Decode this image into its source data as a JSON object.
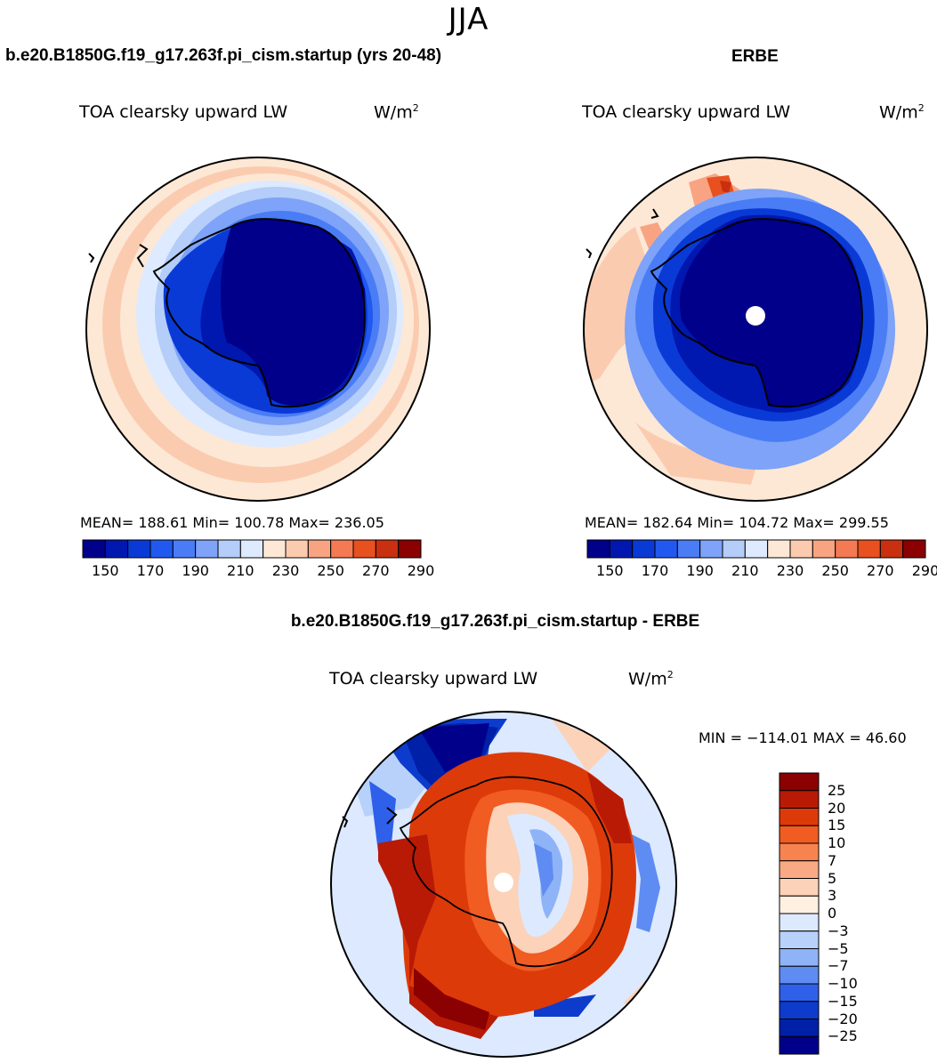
{
  "season": "JJA",
  "panels": [
    {
      "title": "b.e20.B1850G.f19_g17.263f.pi_cism.startup (yrs 20-48)",
      "variable": "TOA clearsky upward LW",
      "units_base": "W/m",
      "units_exp": "2",
      "stats_text": "MEAN= 188.61   Min= 100.78   Max= 236.05",
      "stats": {
        "mean": 188.61,
        "min": 100.78,
        "max": 236.05
      },
      "has_pole_hole": false
    },
    {
      "title": "ERBE",
      "variable": "TOA clearsky upward LW",
      "units_base": "W/m",
      "units_exp": "2",
      "stats_text": "MEAN= 182.64   Min= 104.72   Max= 299.55",
      "stats": {
        "mean": 182.64,
        "min": 104.72,
        "max": 299.55
      },
      "has_pole_hole": true
    }
  ],
  "horiz_colorbar": {
    "colors": [
      "#00008b",
      "#0018b0",
      "#0a3ad6",
      "#2159f0",
      "#4a7cf5",
      "#7ea3f8",
      "#b4cdf9",
      "#ddeaff",
      "#fde8d6",
      "#fbcbb0",
      "#f8a483",
      "#f37a52",
      "#e8501f",
      "#c8300f",
      "#8b0000"
    ],
    "tick_labels": [
      "150",
      "170",
      "190",
      "210",
      "230",
      "250",
      "270",
      "290"
    ]
  },
  "diff_panel": {
    "title": "b.e20.B1850G.f19_g17.263f.pi_cism.startup - ERBE",
    "variable": "TOA clearsky upward LW",
    "units_base": "W/m",
    "units_exp": "2",
    "minmax_text": "MIN = −114.01 MAX =  46.60",
    "min": -114.01,
    "max": 46.6,
    "colorbar_colors_top_to_bottom": [
      "#8b0000",
      "#b81a05",
      "#dd3a0a",
      "#f05c22",
      "#f78450",
      "#f9aa84",
      "#fcd2b8",
      "#fff0e2",
      "#dce9ff",
      "#b7d1fb",
      "#8fb3f7",
      "#5f8cf2",
      "#2f60ea",
      "#0d3ccc",
      "#0020a8",
      "#00008b"
    ],
    "tick_labels_top_to_bottom": [
      "25",
      "20",
      "15",
      "10",
      "7",
      "5",
      "3",
      "0",
      "−3",
      "−5",
      "−7",
      "−10",
      "−15",
      "−20",
      "−25"
    ]
  }
}
